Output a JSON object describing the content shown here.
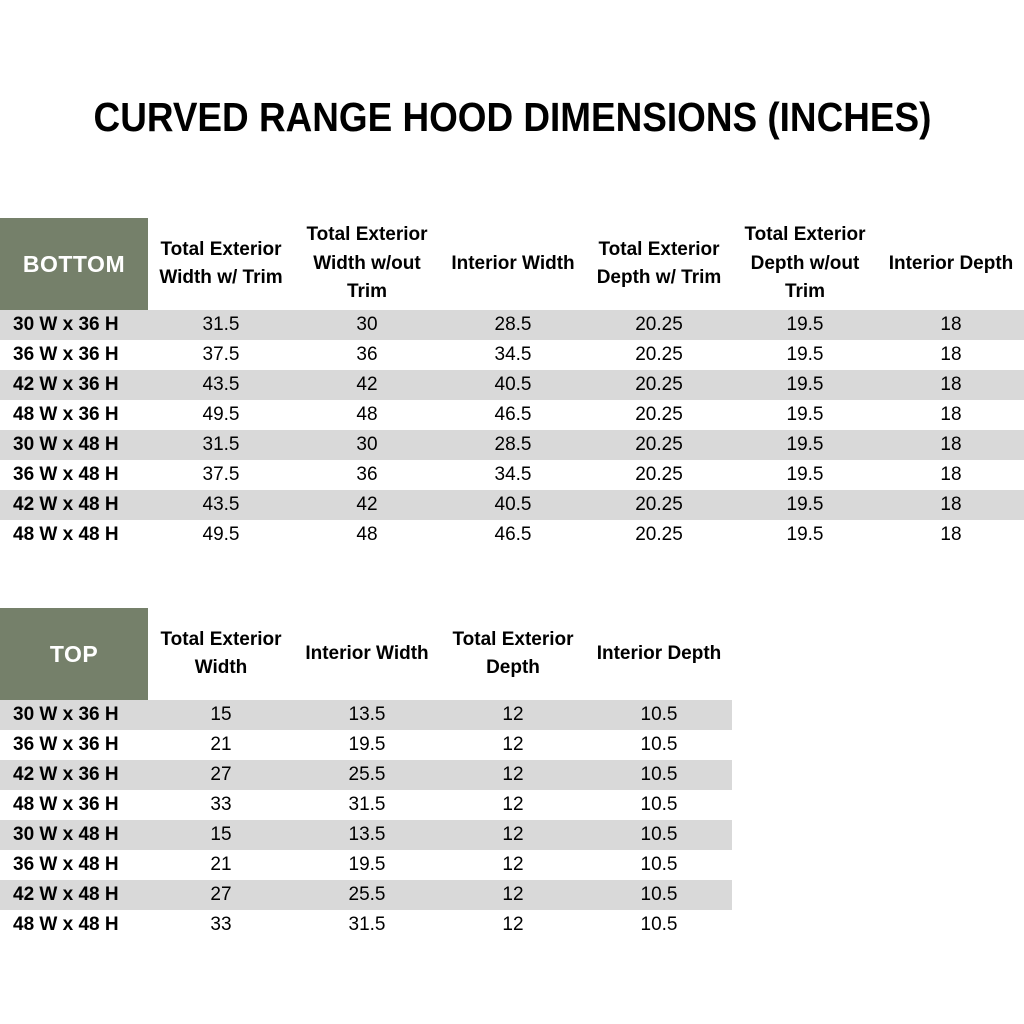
{
  "page": {
    "title": "CURVED RANGE HOOD DIMENSIONS (INCHES)"
  },
  "colors": {
    "header_green": "#75806A",
    "stripe_gray": "#D9D9D9",
    "header_label_text": "#FFFFFF",
    "body_text": "#000000",
    "background": "#FFFFFF"
  },
  "bottom_table": {
    "label": "BOTTOM",
    "columns": [
      "Total Exterior Width w/ Trim",
      "Total Exterior Width w/out Trim",
      "Interior Width",
      "Total Exterior Depth w/ Trim",
      "Total Exterior Depth w/out Trim",
      "Interior Depth"
    ],
    "rows": [
      {
        "size": "30 W x 36 H",
        "values": [
          "31.5",
          "30",
          "28.5",
          "20.25",
          "19.5",
          "18"
        ]
      },
      {
        "size": "36 W x 36 H",
        "values": [
          "37.5",
          "36",
          "34.5",
          "20.25",
          "19.5",
          "18"
        ]
      },
      {
        "size": "42 W x 36 H",
        "values": [
          "43.5",
          "42",
          "40.5",
          "20.25",
          "19.5",
          "18"
        ]
      },
      {
        "size": "48 W x 36 H",
        "values": [
          "49.5",
          "48",
          "46.5",
          "20.25",
          "19.5",
          "18"
        ]
      },
      {
        "size": "30 W x 48 H",
        "values": [
          "31.5",
          "30",
          "28.5",
          "20.25",
          "19.5",
          "18"
        ]
      },
      {
        "size": "36 W x 48 H",
        "values": [
          "37.5",
          "36",
          "34.5",
          "20.25",
          "19.5",
          "18"
        ]
      },
      {
        "size": "42 W x 48 H",
        "values": [
          "43.5",
          "42",
          "40.5",
          "20.25",
          "19.5",
          "18"
        ]
      },
      {
        "size": "48 W x 48 H",
        "values": [
          "49.5",
          "48",
          "46.5",
          "20.25",
          "19.5",
          "18"
        ]
      }
    ]
  },
  "top_table": {
    "label": "TOP",
    "columns": [
      "Total Exterior Width",
      "Interior Width",
      "Total Exterior Depth",
      "Interior Depth"
    ],
    "rows": [
      {
        "size": "30 W x 36 H",
        "values": [
          "15",
          "13.5",
          "12",
          "10.5"
        ]
      },
      {
        "size": "36 W x 36 H",
        "values": [
          "21",
          "19.5",
          "12",
          "10.5"
        ]
      },
      {
        "size": "42 W x 36 H",
        "values": [
          "27",
          "25.5",
          "12",
          "10.5"
        ]
      },
      {
        "size": "48 W x 36 H",
        "values": [
          "33",
          "31.5",
          "12",
          "10.5"
        ]
      },
      {
        "size": "30 W x 48 H",
        "values": [
          "15",
          "13.5",
          "12",
          "10.5"
        ]
      },
      {
        "size": "36 W x 48 H",
        "values": [
          "21",
          "19.5",
          "12",
          "10.5"
        ]
      },
      {
        "size": "42 W x 48 H",
        "values": [
          "27",
          "25.5",
          "12",
          "10.5"
        ]
      },
      {
        "size": "48 W x 48 H",
        "values": [
          "33",
          "31.5",
          "12",
          "10.5"
        ]
      }
    ]
  }
}
